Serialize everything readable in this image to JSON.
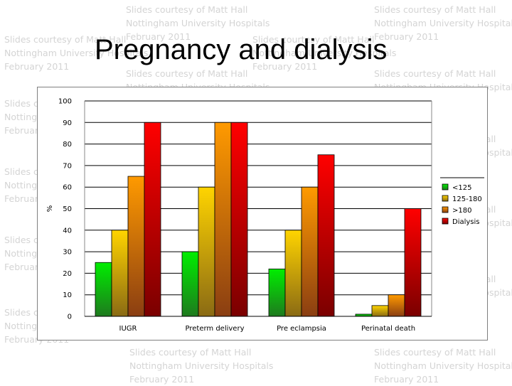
{
  "slide": {
    "title": "Pregnancy and dialysis",
    "watermark_lines": [
      "Slides courtesy of Matt Hall",
      "Nottingham University Hospitals",
      "February 2011"
    ]
  },
  "chart_data": {
    "type": "bar",
    "title": "",
    "xlabel": "",
    "ylabel": "%",
    "ylim": [
      0,
      100
    ],
    "yticks": [
      0,
      10,
      20,
      30,
      40,
      50,
      60,
      70,
      80,
      90,
      100
    ],
    "grid": true,
    "legend_position": "right",
    "categories": [
      "IUGR",
      "Preterm delivery",
      "Pre eclampsia",
      "Perinatal death"
    ],
    "series": [
      {
        "name": "<125",
        "values": [
          25,
          30,
          22,
          1
        ],
        "color_light": "#00ee00",
        "color_dark": "#1e7a1e"
      },
      {
        "name": "125-180",
        "values": [
          40,
          60,
          40,
          5
        ],
        "color_light": "#ffd400",
        "color_dark": "#8a6a14"
      },
      {
        "name": ">180",
        "values": [
          65,
          90,
          60,
          10
        ],
        "color_light": "#ff9a00",
        "color_dark": "#8a3e12"
      },
      {
        "name": "Dialysis",
        "values": [
          90,
          90,
          75,
          50
        ],
        "color_light": "#ff0000",
        "color_dark": "#7a0000"
      }
    ]
  }
}
